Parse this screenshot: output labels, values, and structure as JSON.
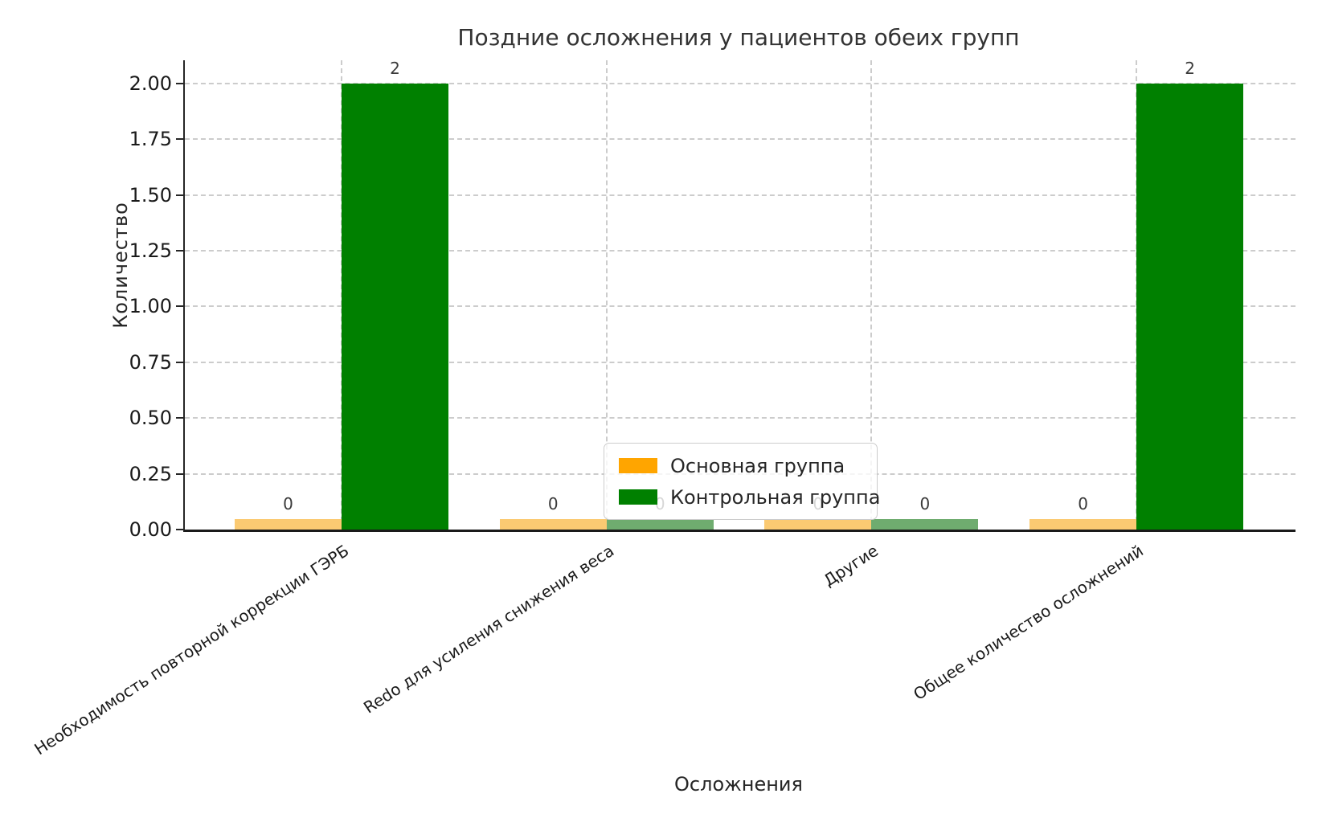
{
  "chart_data": {
    "type": "bar",
    "title": "Поздние осложнения у пациентов обеих групп",
    "xlabel": "Осложнения",
    "ylabel": "Количество",
    "categories": [
      "Необходимость повторной коррекции ГЭРБ",
      "Redo для усиления снижения веса",
      "Другие",
      "Общее количество осложнений"
    ],
    "series": [
      {
        "name": "Основная группа",
        "color": "#FFA500",
        "zero_color": "#FBCA72",
        "values": [
          0,
          0,
          0,
          0
        ]
      },
      {
        "name": "Контрольная группа",
        "color": "#008000",
        "zero_color": "#6FAC6F",
        "values": [
          2,
          0,
          0,
          2
        ]
      }
    ],
    "bar_value_labels": [
      [
        "0",
        "0",
        "0",
        "0"
      ],
      [
        "2",
        "0",
        "0",
        "2"
      ]
    ],
    "yticks": [
      "0.00",
      "0.25",
      "0.50",
      "0.75",
      "1.00",
      "1.25",
      "1.50",
      "1.75",
      "2.00"
    ],
    "ylim": [
      0,
      2.1
    ],
    "grid": "dashed-both-axes",
    "legend_position": "center"
  }
}
